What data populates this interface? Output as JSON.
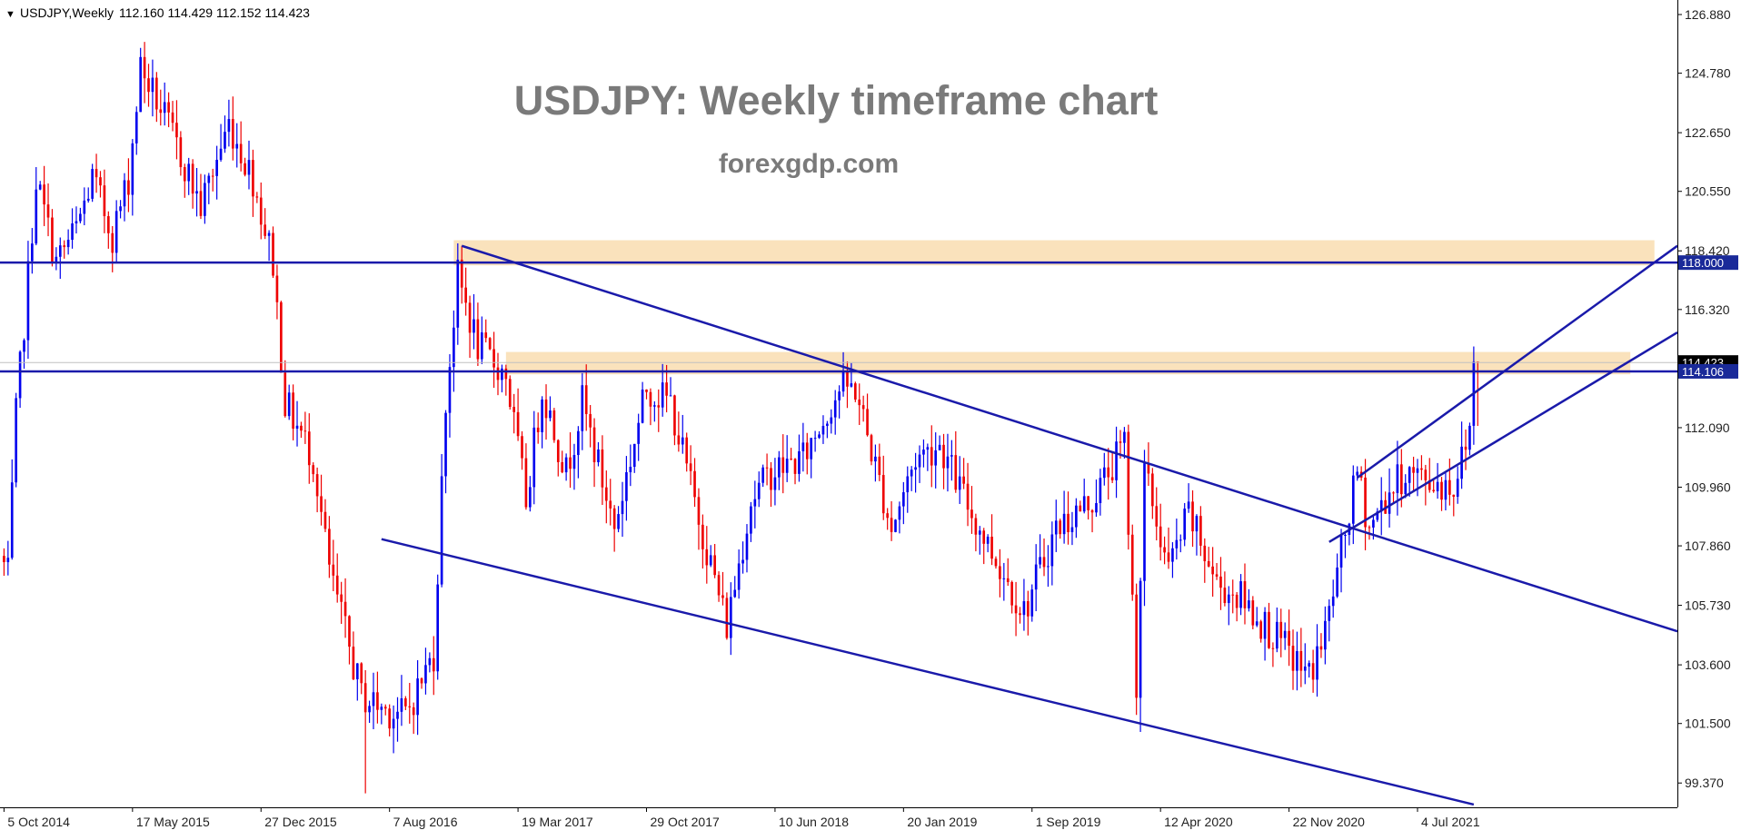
{
  "header": {
    "symbol": "USDJPY,Weekly",
    "ohlc": "112.160 114.429 112.152 114.423",
    "menu_glyph": "▼"
  },
  "annotation": {
    "title": "USDJPY: Weekly timeframe chart",
    "source": "forexgdp.com"
  },
  "colors": {
    "bull": "#0000ee",
    "bear": "#ee0000",
    "line": "#1a1aaa",
    "zone": "#f9ddb0",
    "title_text": "#7a7a7a",
    "axis_text": "#222222",
    "price_label_bg": "#1a2a99"
  },
  "chart_data": {
    "type": "candlestick",
    "title": "USDJPY: Weekly timeframe chart",
    "subtitle": "forexgdp.com",
    "y_range": [
      98.5,
      127.4
    ],
    "y_ticks": [
      "126.880",
      "124.780",
      "122.650",
      "120.550",
      "118.420",
      "116.320",
      "114.423",
      "114.106",
      "112.090",
      "109.960",
      "107.860",
      "105.730",
      "103.600",
      "101.500",
      "99.370"
    ],
    "y_tick_values": [
      126.88,
      124.78,
      122.65,
      120.55,
      118.42,
      116.32,
      114.423,
      114.106,
      112.09,
      109.96,
      107.86,
      105.73,
      103.6,
      101.5,
      99.37
    ],
    "x_range": [
      "2014-09-28",
      "2022-09-30"
    ],
    "x_ticks": [
      "5 Oct 2014",
      "17 May 2015",
      "27 Dec 2015",
      "7 Aug 2016",
      "19 Mar 2017",
      "29 Oct 2017",
      "10 Jun 2018",
      "20 Jan 2019",
      "1 Sep 2019",
      "12 Apr 2020",
      "22 Nov 2020",
      "4 Jul 2021"
    ],
    "x_tick_dates": [
      "2014-10-05",
      "2015-05-17",
      "2015-12-27",
      "2016-08-07",
      "2017-03-19",
      "2017-10-29",
      "2018-06-10",
      "2019-01-20",
      "2019-09-01",
      "2020-04-12",
      "2020-11-22",
      "2021-07-04"
    ],
    "last_price": "114.423",
    "price_path": [
      [
        "2014-10-05",
        107.5
      ],
      [
        "2014-10-19",
        106.8
      ],
      [
        "2014-11-02",
        112.5
      ],
      [
        "2014-11-23",
        117.5
      ],
      [
        "2014-12-07",
        121.0
      ],
      [
        "2015-01-11",
        118.0
      ],
      [
        "2015-02-15",
        119.2
      ],
      [
        "2015-03-15",
        121.0
      ],
      [
        "2015-04-19",
        119.0
      ],
      [
        "2015-05-17",
        121.0
      ],
      [
        "2015-06-07",
        125.0
      ],
      [
        "2015-07-12",
        123.5
      ],
      [
        "2015-08-23",
        121.5
      ],
      [
        "2015-09-20",
        120.0
      ],
      [
        "2015-11-08",
        123.0
      ],
      [
        "2015-12-20",
        121.0
      ],
      [
        "2016-01-24",
        118.0
      ],
      [
        "2016-02-14",
        113.0
      ],
      [
        "2016-04-03",
        111.0
      ],
      [
        "2016-05-01",
        107.0
      ],
      [
        "2016-06-26",
        102.5
      ],
      [
        "2016-08-07",
        102.0
      ],
      [
        "2016-09-11",
        101.8
      ],
      [
        "2016-10-30",
        104.0
      ],
      [
        "2016-11-20",
        113.0
      ],
      [
        "2016-12-11",
        117.5
      ],
      [
        "2017-01-15",
        115.0
      ],
      [
        "2017-03-05",
        114.0
      ],
      [
        "2017-04-09",
        109.5
      ],
      [
        "2017-05-07",
        113.5
      ],
      [
        "2017-06-18",
        110.5
      ],
      [
        "2017-07-16",
        113.0
      ],
      [
        "2017-09-10",
        108.5
      ],
      [
        "2017-11-05",
        113.5
      ],
      [
        "2017-12-17",
        113.0
      ],
      [
        "2018-01-21",
        110.0
      ],
      [
        "2018-03-25",
        105.0
      ],
      [
        "2018-05-06",
        109.5
      ],
      [
        "2018-06-10",
        110.5
      ],
      [
        "2018-08-05",
        111.0
      ],
      [
        "2018-10-07",
        113.5
      ],
      [
        "2018-11-04",
        113.5
      ],
      [
        "2019-01-06",
        108.5
      ],
      [
        "2019-02-17",
        111.0
      ],
      [
        "2019-03-31",
        111.5
      ],
      [
        "2019-05-26",
        109.0
      ],
      [
        "2019-08-25",
        105.5
      ],
      [
        "2019-10-20",
        108.5
      ],
      [
        "2019-12-22",
        109.5
      ],
      [
        "2020-02-16",
        111.5
      ],
      [
        "2020-03-08",
        103.0
      ],
      [
        "2020-03-22",
        110.5
      ],
      [
        "2020-05-03",
        107.0
      ],
      [
        "2020-06-07",
        109.0
      ],
      [
        "2020-07-26",
        106.5
      ],
      [
        "2020-09-06",
        106.0
      ],
      [
        "2020-11-08",
        104.5
      ],
      [
        "2021-01-03",
        103.2
      ],
      [
        "2021-01-31",
        104.8
      ],
      [
        "2021-03-14",
        109.0
      ],
      [
        "2021-03-28",
        110.5
      ],
      [
        "2021-04-18",
        108.5
      ],
      [
        "2021-05-23",
        109.8
      ],
      [
        "2021-06-20",
        110.5
      ],
      [
        "2021-07-25",
        110.2
      ],
      [
        "2021-09-12",
        110.0
      ],
      [
        "2021-10-03",
        111.5
      ],
      [
        "2021-10-10",
        112.2
      ],
      [
        "2021-10-17",
        114.423
      ]
    ],
    "horizontal_lines": [
      118.0,
      114.106
    ],
    "horizontal_line_labels": [
      "118.000",
      "114.106"
    ],
    "resistance_zones": [
      {
        "from": "2016-11-27",
        "to": "2022-08-21",
        "low": 117.9,
        "high": 118.8
      },
      {
        "from": "2017-02-26",
        "to": "2022-07-10",
        "low": 114.0,
        "high": 114.8
      }
    ],
    "trendlines": [
      {
        "from": [
          "2016-12-11",
          118.6
        ],
        "to": [
          "2022-09-30",
          104.8
        ]
      },
      {
        "from": [
          "2016-07-24",
          108.1
        ],
        "to": [
          "2021-10-10",
          98.6
        ]
      },
      {
        "from": [
          "2021-01-31",
          108.0
        ],
        "to": [
          "2022-09-30",
          115.5
        ]
      },
      {
        "from": [
          "2021-03-21",
          110.3
        ],
        "to": [
          "2022-09-30",
          118.6
        ]
      }
    ]
  }
}
